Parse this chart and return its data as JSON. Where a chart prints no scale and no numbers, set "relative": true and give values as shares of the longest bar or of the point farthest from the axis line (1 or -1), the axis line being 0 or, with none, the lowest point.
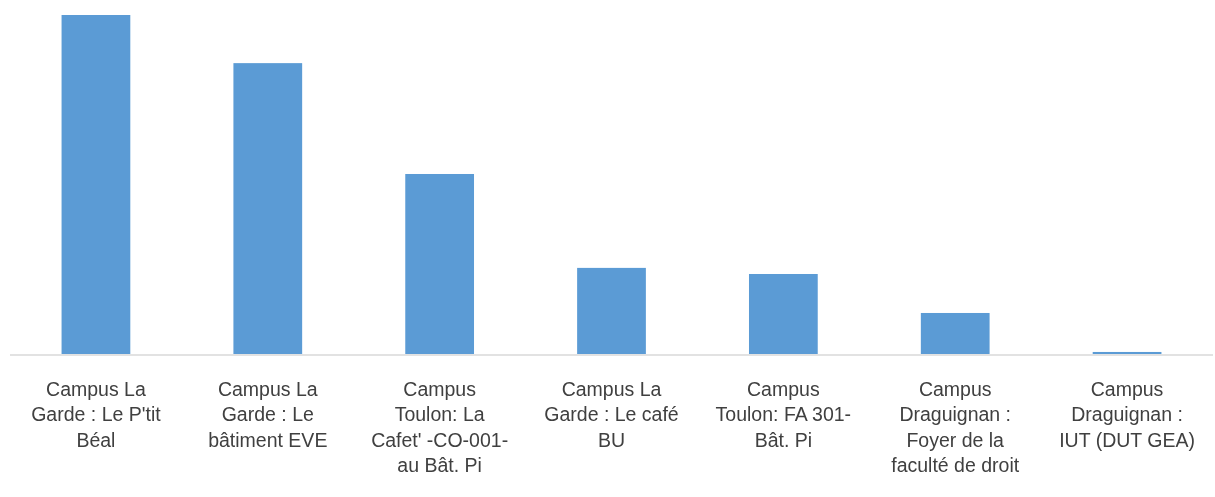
{
  "chart_data": {
    "type": "bar",
    "relative": true,
    "color": "#5b9bd5",
    "categories": [
      "Campus La Garde : Le P'tit Béal",
      "Campus La Garde : Le bâtiment EVE",
      "Campus Toulon: La Cafet' -CO-001- au Bât. Pi",
      "Campus La Garde : Le café BU",
      "Campus Toulon: FA 301- Bât. Pi",
      "Campus Draguignan : Foyer de la faculté de droit",
      "Campus Draguignan : IUT (DUT GEA)"
    ],
    "values": [
      1,
      0.858,
      0.531,
      0.254,
      0.236,
      0.121,
      0.006
    ]
  }
}
